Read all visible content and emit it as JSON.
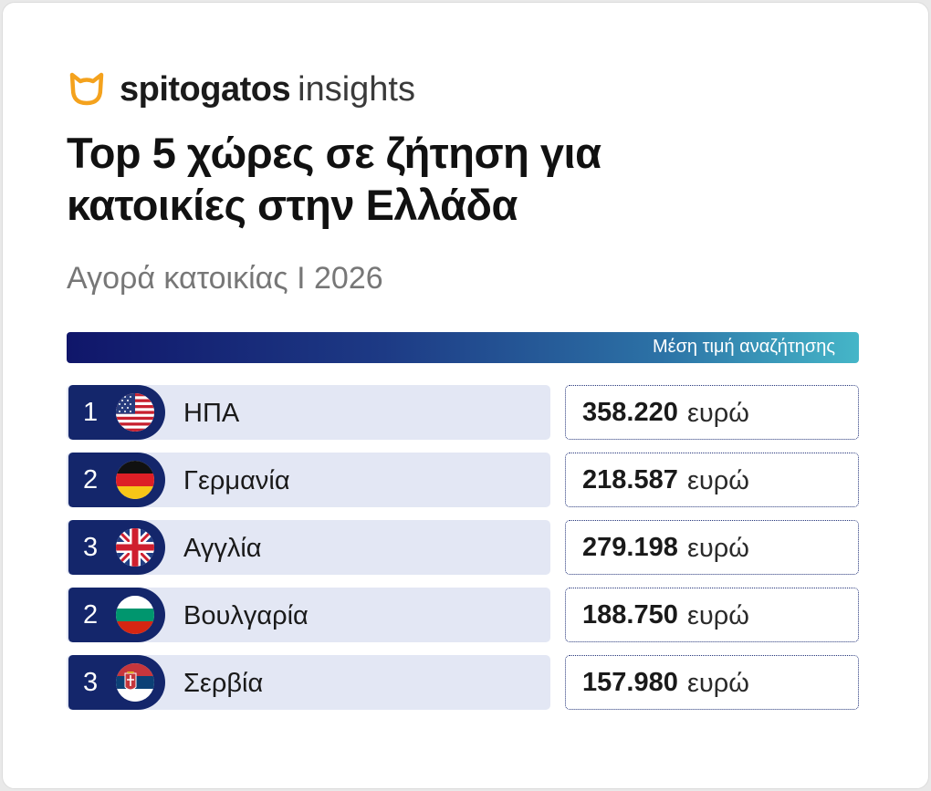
{
  "brand": {
    "name": "spitogatos",
    "sub": "insights",
    "icon": "cat-icon",
    "accent": "#f4a21d"
  },
  "title_line1": "Top 5 χώρες σε ζήτηση για",
  "title_line2": "κατοικίες στην Ελλάδα",
  "subtitle": "Αγορά κατοικίας I  2026",
  "column_header": "Μέση τιμή αναζήτησης",
  "currency_label": "ευρώ",
  "colors": {
    "dark_navy": "#14266b",
    "row_bg": "#e3e7f4",
    "gradient_end": "#45b6c8"
  },
  "chart_data": {
    "type": "table",
    "title": "Top 5 χώρες σε ζήτηση για κατοικίες στην Ελλάδα",
    "subtitle": "Αγορά κατοικίας I  2026",
    "columns": [
      "",
      "",
      "Μέση τιμή αναζήτησης"
    ],
    "rows": [
      {
        "rank": "1",
        "country": "ΗΠΑ",
        "flag": "usa-flag-icon",
        "price": "358.220",
        "value": 358220
      },
      {
        "rank": "2",
        "country": "Γερμανία",
        "flag": "germany-flag-icon",
        "price": "218.587",
        "value": 218587
      },
      {
        "rank": "3",
        "country": "Αγγλία",
        "flag": "uk-flag-icon",
        "price": "279.198",
        "value": 279198
      },
      {
        "rank": "2",
        "country": "Βουλγαρία",
        "flag": "bulgaria-flag-icon",
        "price": "188.750",
        "value": 188750
      },
      {
        "rank": "3",
        "country": "Σερβία",
        "flag": "serbia-flag-icon",
        "price": "157.980",
        "value": 157980
      }
    ]
  }
}
